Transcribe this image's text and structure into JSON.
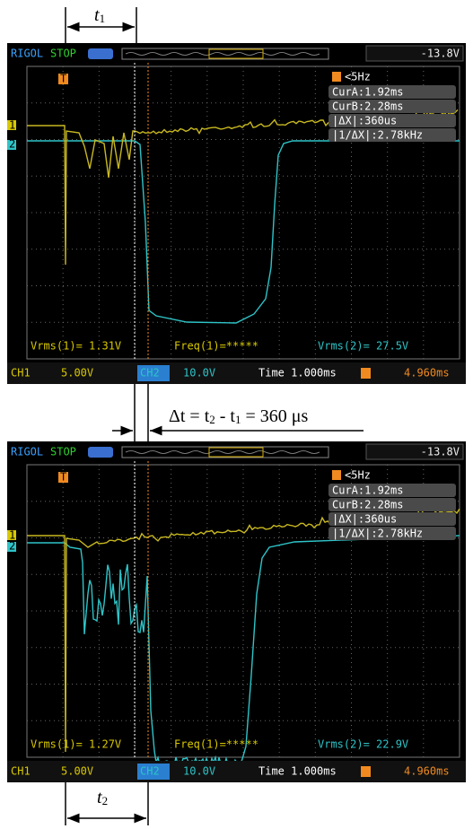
{
  "annotations": {
    "t1": {
      "symbol": "t",
      "subscript": "1"
    },
    "delta": {
      "parts": [
        "Δt = t",
        "2",
        " - t",
        "1",
        " = 360 μs"
      ]
    },
    "t2": {
      "symbol": "t",
      "subscript": "2"
    }
  },
  "screens": [
    {
      "brand": "RIGOL",
      "status": "STOP",
      "trigger_level": "-13.8V",
      "ch_marker_1": "1",
      "ch_marker_2": "2",
      "trigger_marker": "T",
      "trigger_freq": "<5Hz",
      "cursor_a": "CurA:1.92ms",
      "cursor_b": "CurB:2.28ms",
      "delta_x": "|ΔX|:360us",
      "inv_delta_x": "|1/ΔX|:2.78kHz",
      "meas1": "Vrms(1)= 1.31V",
      "meas_freq": "Freq(1)=*****",
      "meas2": "Vrms(2)= 27.5V",
      "ch1_label": "CH1",
      "ch1_scale": "5.00V",
      "ch2_label": "CH2",
      "ch2_scale": "10.0V",
      "timebase": "Time 1.000ms",
      "trig_offset": "4.960ms"
    },
    {
      "brand": "RIGOL",
      "status": "STOP",
      "trigger_level": "-13.8V",
      "ch_marker_1": "1",
      "ch_marker_2": "2",
      "trigger_marker": "T",
      "trigger_freq": "<5Hz",
      "cursor_a": "CurA:1.92ms",
      "cursor_b": "CurB:2.28ms",
      "delta_x": "|ΔX|:360us",
      "inv_delta_x": "|1/ΔX|:2.78kHz",
      "meas1": "Vrms(1)= 1.27V",
      "meas_freq": "Freq(1)=*****",
      "meas2": "Vrms(2)= 22.9V",
      "ch1_label": "CH1",
      "ch1_scale": "5.00V",
      "ch2_label": "CH2",
      "ch2_scale": "10.0V",
      "timebase": "Time 1.000ms",
      "trig_offset": "4.960ms"
    }
  ]
}
